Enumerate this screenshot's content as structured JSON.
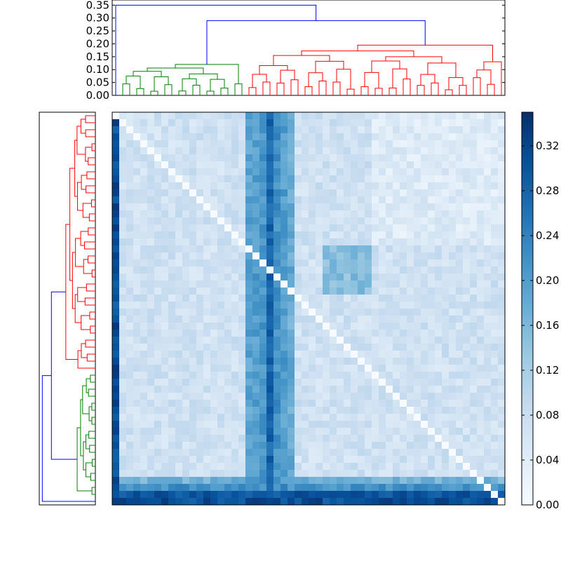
{
  "chart_data": [
    {
      "type": "heatmap",
      "title": "",
      "xlabel": "",
      "ylabel": "",
      "n": 56,
      "value_range": [
        0.0,
        0.35
      ],
      "colormap": "Blues",
      "diagonal_value": 0.0,
      "first_row_col_mean": 0.31,
      "background_mean": 0.07,
      "cluster_blocks": [
        {
          "name": "green",
          "start": 0,
          "end": 18,
          "within_mean": 0.045
        },
        {
          "name": "blue",
          "start": 19,
          "end": 25,
          "within_mean": 0.15
        },
        {
          "name": "red",
          "start": 26,
          "end": 55,
          "within_mean": 0.07
        }
      ],
      "highlight_columns": [
        {
          "index": 19,
          "mean": 0.19
        },
        {
          "index": 20,
          "mean": 0.2
        },
        {
          "index": 21,
          "mean": 0.21
        },
        {
          "index": 22,
          "mean": 0.28
        },
        {
          "index": 23,
          "mean": 0.22
        },
        {
          "index": 24,
          "mean": 0.2
        },
        {
          "index": 25,
          "mean": 0.18
        }
      ],
      "highlight_rows": [
        {
          "index": 1,
          "mean": 0.3
        },
        {
          "index": 2,
          "mean": 0.22
        },
        {
          "index": 3,
          "mean": 0.17
        }
      ],
      "grid": false
    },
    {
      "type": "dendrogram",
      "orientation": "top",
      "ytick_labels": [
        "0.00",
        "0.05",
        "0.10",
        "0.15",
        "0.20",
        "0.25",
        "0.30",
        "0.35"
      ],
      "yticks": [
        0,
        0.05,
        0.1,
        0.15,
        0.2,
        0.25,
        0.3,
        0.35
      ],
      "ylim": [
        0,
        0.37
      ],
      "root_height": 0.35,
      "clusters": [
        {
          "name": "green",
          "color": "#008000",
          "leaves": 18,
          "merge_height": 0.12
        },
        {
          "name": "red",
          "color": "#ff0000",
          "leaves": 37,
          "merge_height": 0.195
        }
      ],
      "link_color_above_threshold": "#0000ff",
      "merge_green_red_height": 0.29
    },
    {
      "type": "dendrogram",
      "orientation": "left",
      "clusters": [
        {
          "name": "red",
          "color": "#ff0000"
        },
        {
          "name": "green",
          "color": "#008000"
        }
      ],
      "link_color_above_threshold": "#0000ff"
    },
    {
      "type": "colorbar",
      "range": [
        0.0,
        0.35
      ],
      "tick_labels": [
        "0.00",
        "0.04",
        "0.08",
        "0.12",
        "0.16",
        "0.20",
        "0.24",
        "0.28",
        "0.32"
      ],
      "ticks": [
        0,
        0.04,
        0.08,
        0.12,
        0.16,
        0.2,
        0.24,
        0.28,
        0.32
      ],
      "colormap": "Blues"
    }
  ]
}
